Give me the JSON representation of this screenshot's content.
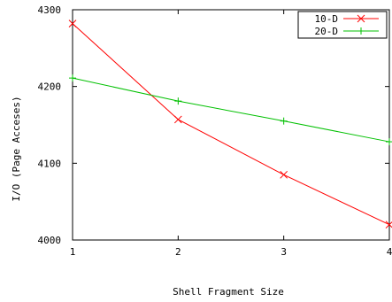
{
  "chart_data": {
    "type": "line",
    "title": "",
    "xlabel": "Shell Fragment Size",
    "ylabel": "I/O (Page Acceses)",
    "x": [
      1,
      2,
      3,
      4
    ],
    "xlim": [
      1,
      4
    ],
    "ylim": [
      4000,
      4300
    ],
    "x_ticks": [
      "1",
      "2",
      "3",
      "4"
    ],
    "y_ticks": [
      "4000",
      "4100",
      "4200",
      "4300"
    ],
    "grid": false,
    "legend_position": "top-right",
    "series": [
      {
        "name": "10-D",
        "color": "#ff0000",
        "marker": "x",
        "values": [
          4282,
          4157,
          4085,
          4020
        ]
      },
      {
        "name": "20-D",
        "color": "#00c000",
        "marker": "+",
        "values": [
          4211,
          4181,
          4155,
          4128
        ]
      }
    ]
  }
}
